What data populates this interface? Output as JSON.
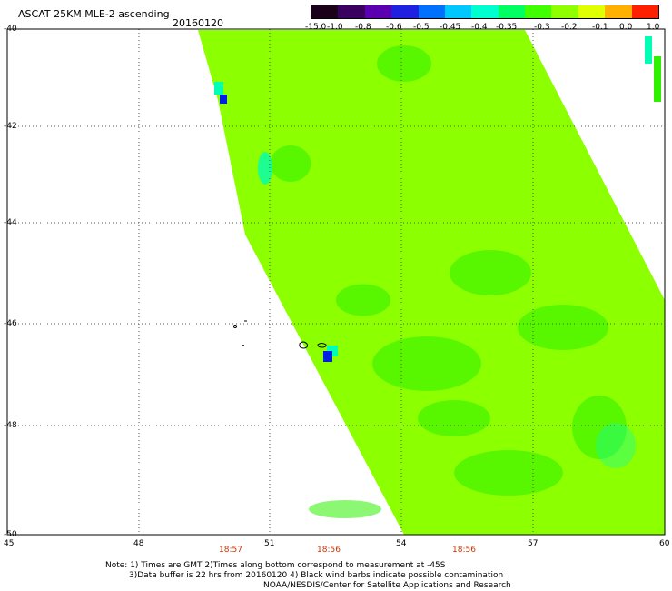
{
  "header": {
    "title": "ASCAT 25KM MLE-2 ascending",
    "date": "20160120"
  },
  "colorbar": {
    "labels": [
      "-15.0",
      "-1.0",
      "-0.8",
      "-0.6",
      "-0.5",
      "-0.45",
      "-0.4",
      "-0.35",
      "-0.3",
      "-0.2",
      "-0.1",
      "0.0",
      "1.0"
    ],
    "colors": [
      "#1a0018",
      "#3a0060",
      "#5a00b0",
      "#2020e0",
      "#0070ff",
      "#00c8ff",
      "#00ffd0",
      "#00ff60",
      "#40ff00",
      "#90ff00",
      "#e0ff00",
      "#ffb000",
      "#ff2000"
    ]
  },
  "axes": {
    "lat_labels": [
      "-40",
      "-42",
      "-44",
      "-46",
      "-48",
      "-50"
    ],
    "lon_labels": [
      "45",
      "48",
      "51",
      "54",
      "57",
      "60"
    ]
  },
  "times": [
    "18:57",
    "18:56",
    "18:56"
  ],
  "notes": {
    "line1": "Note: 1) Times are GMT 2)Times along bottom correspond to measurement at -45S",
    "line2": "3)Data buffer is 22 hrs from 20160120 4) Black wind barbs indicate possible contamination",
    "line3": "NOAA/NESDIS/Center for Satellite Applications and Research"
  },
  "colors": {
    "swath_main": "#8cff00",
    "swath_green": "#2ef000",
    "swath_cyan": "#00ffb4",
    "swath_blue": "#0020e0"
  }
}
